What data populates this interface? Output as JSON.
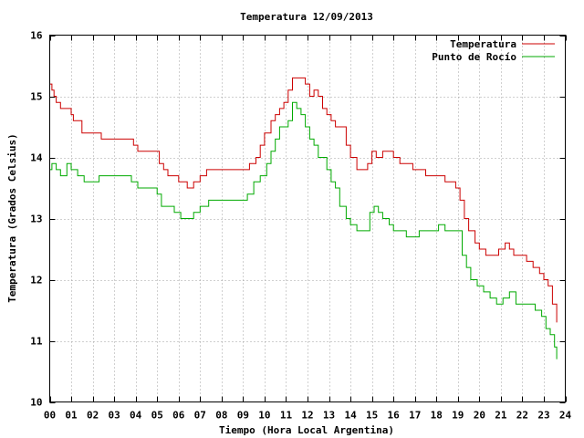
{
  "chart_data": {
    "type": "line",
    "title": "Temperatura 12/09/2013",
    "xlabel": "Tiempo (Hora Local Argentina)",
    "ylabel": "Temperatura (Grados Celsius)",
    "xlim": [
      0,
      24
    ],
    "ylim": [
      10,
      16
    ],
    "xticks": [
      "00",
      "01",
      "02",
      "03",
      "04",
      "05",
      "06",
      "07",
      "08",
      "09",
      "10",
      "11",
      "12",
      "13",
      "14",
      "15",
      "16",
      "17",
      "18",
      "19",
      "20",
      "21",
      "22",
      "23",
      "24"
    ],
    "yticks": [
      "10",
      "11",
      "12",
      "13",
      "14",
      "15",
      "16"
    ],
    "grid": true,
    "legend_position": "top-right",
    "series": [
      {
        "name": "Temperatura",
        "color": "#cc0000",
        "x": [
          0,
          0.1,
          0.2,
          0.3,
          0.5,
          1.0,
          1.1,
          1.5,
          2.0,
          2.4,
          2.8,
          3.3,
          3.9,
          4.1,
          4.6,
          5.1,
          5.3,
          5.5,
          5.8,
          6.0,
          6.2,
          6.4,
          6.7,
          7.0,
          7.3,
          7.8,
          8.5,
          9.0,
          9.3,
          9.6,
          9.8,
          10.0,
          10.3,
          10.5,
          10.7,
          10.9,
          11.1,
          11.3,
          11.5,
          11.7,
          11.9,
          12.1,
          12.3,
          12.5,
          12.7,
          12.9,
          13.1,
          13.3,
          13.5,
          13.8,
          14.0,
          14.3,
          14.5,
          14.8,
          15.0,
          15.2,
          15.5,
          15.8,
          16.0,
          16.3,
          16.6,
          16.9,
          17.2,
          17.5,
          17.8,
          18.1,
          18.4,
          18.7,
          18.9,
          19.1,
          19.3,
          19.5,
          19.8,
          20.0,
          20.3,
          20.6,
          20.9,
          21.2,
          21.4,
          21.6,
          21.9,
          22.2,
          22.5,
          22.8,
          23.0,
          23.2,
          23.4,
          23.6
        ],
        "y": [
          15.2,
          15.1,
          15.0,
          14.9,
          14.8,
          14.7,
          14.6,
          14.4,
          14.4,
          14.3,
          14.3,
          14.3,
          14.2,
          14.1,
          14.1,
          13.9,
          13.8,
          13.7,
          13.7,
          13.6,
          13.6,
          13.5,
          13.6,
          13.7,
          13.8,
          13.8,
          13.8,
          13.8,
          13.9,
          14.0,
          14.2,
          14.4,
          14.6,
          14.7,
          14.8,
          14.9,
          15.1,
          15.3,
          15.3,
          15.3,
          15.2,
          15.0,
          15.1,
          15.0,
          14.8,
          14.7,
          14.6,
          14.5,
          14.5,
          14.2,
          14.0,
          13.8,
          13.8,
          13.9,
          14.1,
          14.0,
          14.1,
          14.1,
          14.0,
          13.9,
          13.9,
          13.8,
          13.8,
          13.7,
          13.7,
          13.7,
          13.6,
          13.6,
          13.5,
          13.3,
          13.0,
          12.8,
          12.6,
          12.5,
          12.4,
          12.4,
          12.5,
          12.6,
          12.5,
          12.4,
          12.4,
          12.3,
          12.2,
          12.1,
          12.0,
          11.9,
          11.6,
          11.3
        ]
      },
      {
        "name": "Punto de Rocío",
        "color": "#00aa00",
        "x": [
          0,
          0.1,
          0.3,
          0.5,
          0.8,
          1.0,
          1.3,
          1.6,
          2.0,
          2.3,
          2.6,
          3.0,
          3.4,
          3.8,
          4.1,
          4.4,
          4.7,
          5.0,
          5.2,
          5.5,
          5.8,
          6.1,
          6.4,
          6.7,
          7.0,
          7.4,
          7.9,
          8.4,
          8.9,
          9.2,
          9.5,
          9.8,
          10.1,
          10.3,
          10.5,
          10.7,
          10.9,
          11.1,
          11.3,
          11.5,
          11.7,
          11.9,
          12.1,
          12.3,
          12.5,
          12.7,
          12.9,
          13.1,
          13.3,
          13.5,
          13.8,
          14.0,
          14.3,
          14.6,
          14.9,
          15.1,
          15.3,
          15.5,
          15.8,
          16.0,
          16.3,
          16.6,
          16.9,
          17.2,
          17.5,
          17.8,
          18.1,
          18.4,
          18.7,
          19.0,
          19.2,
          19.4,
          19.6,
          19.9,
          20.2,
          20.5,
          20.8,
          21.1,
          21.4,
          21.7,
          22.0,
          22.3,
          22.6,
          22.9,
          23.1,
          23.3,
          23.5,
          23.6
        ],
        "y": [
          13.8,
          13.9,
          13.8,
          13.7,
          13.9,
          13.8,
          13.7,
          13.6,
          13.6,
          13.7,
          13.7,
          13.7,
          13.7,
          13.6,
          13.5,
          13.5,
          13.5,
          13.4,
          13.2,
          13.2,
          13.1,
          13.0,
          13.0,
          13.1,
          13.2,
          13.3,
          13.3,
          13.3,
          13.3,
          13.4,
          13.6,
          13.7,
          13.9,
          14.1,
          14.3,
          14.5,
          14.5,
          14.6,
          14.9,
          14.8,
          14.7,
          14.5,
          14.3,
          14.2,
          14.0,
          14.0,
          13.8,
          13.6,
          13.5,
          13.2,
          13.0,
          12.9,
          12.8,
          12.8,
          13.1,
          13.2,
          13.1,
          13.0,
          12.9,
          12.8,
          12.8,
          12.7,
          12.7,
          12.8,
          12.8,
          12.8,
          12.9,
          12.8,
          12.8,
          12.8,
          12.4,
          12.2,
          12.0,
          11.9,
          11.8,
          11.7,
          11.6,
          11.7,
          11.8,
          11.6,
          11.6,
          11.6,
          11.5,
          11.4,
          11.2,
          11.1,
          10.9,
          10.7
        ]
      }
    ]
  }
}
